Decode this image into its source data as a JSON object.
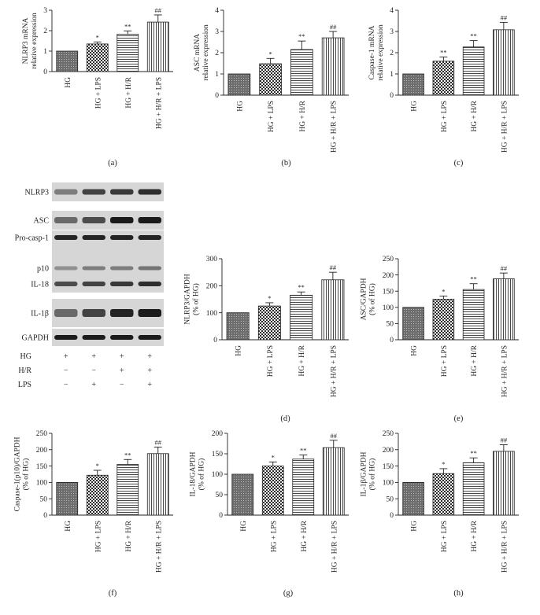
{
  "chart_data": [
    {
      "id": "a",
      "type": "bar",
      "panel_label": "(a)",
      "categories": [
        "HG",
        "HG + LPS",
        "HG + H/R",
        "HG + H/R + LPS"
      ],
      "values": [
        1.0,
        1.35,
        1.83,
        2.42
      ],
      "errors": [
        0,
        0.1,
        0.16,
        0.35
      ],
      "annotations": [
        "",
        "*",
        "**",
        "##"
      ],
      "ylabel": [
        "NLRP3 mRNA",
        "relative expression"
      ],
      "ylim": [
        0,
        3
      ],
      "yticks": [
        0,
        1,
        2,
        3
      ],
      "grid": false
    },
    {
      "id": "b",
      "type": "bar",
      "panel_label": "(b)",
      "categories": [
        "HG",
        "HG + LPS",
        "HG + H/R",
        "HG + H/R + LPS"
      ],
      "values": [
        1.0,
        1.48,
        2.15,
        2.7
      ],
      "errors": [
        0,
        0.25,
        0.4,
        0.3
      ],
      "annotations": [
        "",
        "*",
        "**",
        "##"
      ],
      "ylabel": [
        "ASC mRNA",
        "relative expression"
      ],
      "ylim": [
        0,
        4
      ],
      "yticks": [
        0,
        1,
        2,
        3,
        4
      ],
      "grid": false
    },
    {
      "id": "c",
      "type": "bar",
      "panel_label": "(c)",
      "categories": [
        "HG",
        "HG + LPS",
        "HG + H/R",
        "HG + H/R + LPS"
      ],
      "values": [
        1.0,
        1.6,
        2.27,
        3.08
      ],
      "errors": [
        0,
        0.2,
        0.3,
        0.35
      ],
      "annotations": [
        "",
        "**",
        "**",
        "##"
      ],
      "ylabel": [
        "Caspase-1 mRNA",
        "relative expression"
      ],
      "ylim": [
        0,
        4
      ],
      "yticks": [
        0,
        1,
        2,
        3,
        4
      ],
      "grid": false
    },
    {
      "id": "d",
      "type": "bar",
      "panel_label": "(d)",
      "categories": [
        "HG",
        "HG + LPS",
        "HG + H/R",
        "HG + H/R + LPS"
      ],
      "values": [
        100,
        125,
        165,
        222
      ],
      "errors": [
        0,
        12,
        12,
        28
      ],
      "annotations": [
        "",
        "*",
        "**",
        "##"
      ],
      "ylabel": [
        "NLRP3/GAPDH",
        "(% of HG)"
      ],
      "ylim": [
        0,
        300
      ],
      "yticks": [
        0,
        100,
        200,
        300
      ],
      "grid": false
    },
    {
      "id": "e",
      "type": "bar",
      "panel_label": "(e)",
      "categories": [
        "HG",
        "HG + LPS",
        "HG + H/R",
        "HG + H/R + LPS"
      ],
      "values": [
        100,
        125,
        155,
        188
      ],
      "errors": [
        0,
        10,
        18,
        18
      ],
      "annotations": [
        "",
        "*",
        "**",
        "##"
      ],
      "ylabel": [
        "ASC/GAPDH",
        "(% of HG)"
      ],
      "ylim": [
        0,
        250
      ],
      "yticks": [
        0,
        50,
        100,
        150,
        200,
        250
      ],
      "grid": false
    },
    {
      "id": "f",
      "type": "bar",
      "panel_label": "(f)",
      "categories": [
        "HG",
        "HG + LPS",
        "HG + H/R",
        "HG + H/R + LPS"
      ],
      "values": [
        100,
        122,
        155,
        188
      ],
      "errors": [
        0,
        15,
        15,
        20
      ],
      "annotations": [
        "",
        "*",
        "**",
        "##"
      ],
      "ylabel": [
        "Caspase-1(p10)/GAPDH",
        "(% of HG)"
      ],
      "ylim": [
        0,
        250
      ],
      "yticks": [
        0,
        50,
        100,
        150,
        200,
        250
      ],
      "grid": false
    },
    {
      "id": "g",
      "type": "bar",
      "panel_label": "(g)",
      "categories": [
        "HG",
        "HG + LPS",
        "HG + H/R",
        "HG + H/R + LPS"
      ],
      "values": [
        100,
        120,
        137,
        165
      ],
      "errors": [
        0,
        10,
        10,
        18
      ],
      "annotations": [
        "",
        "*",
        "**",
        "##"
      ],
      "ylabel": [
        "IL-18/GAPDH",
        "(% of HG)"
      ],
      "ylim": [
        0,
        200
      ],
      "yticks": [
        0,
        50,
        100,
        150,
        200
      ],
      "grid": false
    },
    {
      "id": "h",
      "type": "bar",
      "panel_label": "(h)",
      "categories": [
        "HG",
        "HG + LPS",
        "HG + H/R",
        "HG + H/R + LPS"
      ],
      "values": [
        100,
        127,
        160,
        195
      ],
      "errors": [
        0,
        15,
        15,
        20
      ],
      "annotations": [
        "",
        "*",
        "**",
        "##"
      ],
      "ylabel": [
        "IL-1β/GAPDH",
        "(% of HG)"
      ],
      "ylim": [
        0,
        250
      ],
      "yticks": [
        0,
        50,
        100,
        150,
        200,
        250
      ],
      "grid": false
    }
  ],
  "blot": {
    "rows": [
      "NLRP3",
      "ASC",
      "Pro-casp-1",
      "p10",
      "IL-18",
      "IL-1β",
      "GAPDH"
    ],
    "conditions": [
      {
        "name": "HG",
        "signs": [
          "+",
          "+",
          "+",
          "+"
        ]
      },
      {
        "name": "H/R",
        "signs": [
          "−",
          "−",
          "+",
          "+"
        ]
      },
      {
        "name": "LPS",
        "signs": [
          "−",
          "+",
          "−",
          "+"
        ]
      }
    ]
  }
}
